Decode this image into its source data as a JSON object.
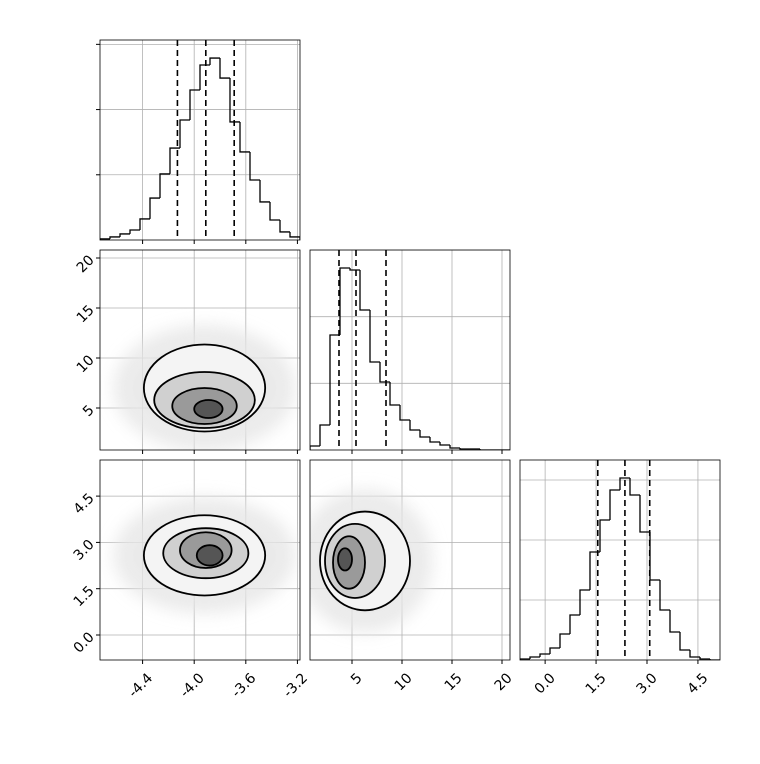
{
  "chart_data": [
    {
      "type": "histogram",
      "bins": [
        -4.73,
        -4.6525,
        -4.575,
        -4.4975,
        -4.42,
        -4.3425,
        -4.265,
        -4.1875,
        -4.11,
        -4.0325,
        -3.955,
        -3.8775,
        -3.8,
        -3.7225,
        -3.645,
        -3.5675,
        -3.49,
        -3.4125,
        -3.335,
        -3.2575,
        -3.18
      ],
      "counts": [
        5,
        14,
        28,
        46,
        97,
        193,
        304,
        423,
        552,
        690,
        805,
        837,
        745,
        543,
        405,
        276,
        175,
        92,
        37,
        14
      ],
      "quantiles": [
        -4.13,
        -3.91,
        -3.69
      ],
      "xlim": [
        -4.73,
        -3.18
      ],
      "xticks": [
        -4.4,
        {
          "value": -4.0,
          "label": "-4.0"
        },
        -3.6,
        -3.2
      ],
      "ylim": [
        0,
        920
      ],
      "yticks": [
        300,
        600,
        900
      ],
      "grid": true
    },
    {
      "type": "contour",
      "xlim": [
        -4.73,
        -3.18
      ],
      "ylim": [
        0.8,
        20.8
      ],
      "xticks": [
        -4.4,
        {
          "value": -4.0,
          "label": "-4.0"
        },
        -3.6,
        -3.2
      ],
      "yticks": [
        5,
        10,
        15,
        20
      ],
      "grid": true,
      "contours": [
        {
          "cx": -3.92,
          "cy": 7.0,
          "rx": 0.47,
          "ry": 4.35
        },
        {
          "cx": -3.92,
          "cy": 5.8,
          "rx": 0.39,
          "ry": 2.8
        },
        {
          "cx": -3.92,
          "cy": 5.2,
          "rx": 0.25,
          "ry": 1.8
        },
        {
          "cx": -3.89,
          "cy": 4.9,
          "rx": 0.11,
          "ry": 0.9
        }
      ]
    },
    {
      "type": "histogram",
      "bins": [
        0.8,
        1.8,
        2.8,
        3.8,
        4.8,
        5.8,
        6.8,
        7.8,
        8.8,
        9.8,
        10.8,
        11.8,
        12.8,
        13.8,
        14.8,
        15.8,
        16.8,
        17.8,
        18.8,
        19.8,
        20.8
      ],
      "counts": [
        24,
        150,
        690,
        1092,
        1080,
        840,
        528,
        408,
        270,
        180,
        120,
        78,
        48,
        30,
        12,
        6,
        6,
        0,
        0,
        0
      ],
      "quantiles": [
        3.7,
        5.4,
        8.4
      ],
      "xlim": [
        0.8,
        20.8
      ],
      "xticks": [
        5,
        10,
        15,
        20
      ],
      "ylim": [
        0,
        1200
      ],
      "yticks": [
        400,
        800,
        1200
      ],
      "grid": true
    },
    {
      "type": "contour",
      "xlim": [
        -4.73,
        -3.18
      ],
      "ylim": [
        -0.81,
        5.67
      ],
      "xticks": [
        -4.4,
        {
          "value": -4.0,
          "label": "-4.0"
        },
        -3.6,
        -3.2
      ],
      "yticks": [
        {
          "value": 0.0,
          "label": "0.0"
        },
        1.5,
        {
          "value": 3.0,
          "label": "3.0"
        },
        4.5
      ],
      "grid": true,
      "contours": [
        {
          "cx": -3.92,
          "cy": 2.58,
          "rx": 0.47,
          "ry": 1.3
        },
        {
          "cx": -3.91,
          "cy": 2.65,
          "rx": 0.33,
          "ry": 0.81
        },
        {
          "cx": -3.91,
          "cy": 2.75,
          "rx": 0.2,
          "ry": 0.58
        },
        {
          "cx": -3.88,
          "cy": 2.58,
          "rx": 0.1,
          "ry": 0.33
        }
      ]
    },
    {
      "type": "contour",
      "xlim": [
        0.8,
        20.8
      ],
      "ylim": [
        -0.81,
        5.67
      ],
      "xticks": [
        5,
        10,
        15,
        20
      ],
      "yticks": [
        {
          "value": 0.0,
          "label": "0.0"
        },
        1.5,
        {
          "value": 3.0,
          "label": "3.0"
        },
        4.5
      ],
      "grid": true,
      "contours": [
        {
          "cx": 6.3,
          "cy": 2.4,
          "rx": 4.5,
          "ry": 1.6
        },
        {
          "cx": 5.3,
          "cy": 2.4,
          "rx": 3.0,
          "ry": 1.2
        },
        {
          "cx": 4.7,
          "cy": 2.35,
          "rx": 1.6,
          "ry": 0.85
        },
        {
          "cx": 4.3,
          "cy": 2.45,
          "rx": 0.7,
          "ry": 0.36
        }
      ]
    },
    {
      "type": "histogram",
      "bins": [
        -0.74,
        -0.4455,
        -0.151,
        0.1435,
        0.438,
        0.7325,
        1.027,
        1.3215,
        1.616,
        1.9105,
        2.205,
        2.4995,
        2.794,
        3.0885,
        3.383,
        3.6775,
        3.972,
        4.2665,
        4.561,
        4.8555,
        5.15
      ],
      "counts": [
        5,
        15,
        30,
        60,
        130,
        225,
        350,
        540,
        700,
        850,
        910,
        825,
        640,
        400,
        250,
        140,
        50,
        15,
        5,
        0
      ],
      "quantiles": [
        1.55,
        2.35,
        3.08
      ],
      "xlim": [
        -0.74,
        5.15
      ],
      "xticks": [
        {
          "value": 0.0,
          "label": "0.0"
        },
        1.5,
        {
          "value": 3.0,
          "label": "3.0"
        },
        4.5
      ],
      "ylim": [
        0,
        1000
      ],
      "yticks": [
        300,
        600,
        900
      ],
      "grid": true
    }
  ]
}
